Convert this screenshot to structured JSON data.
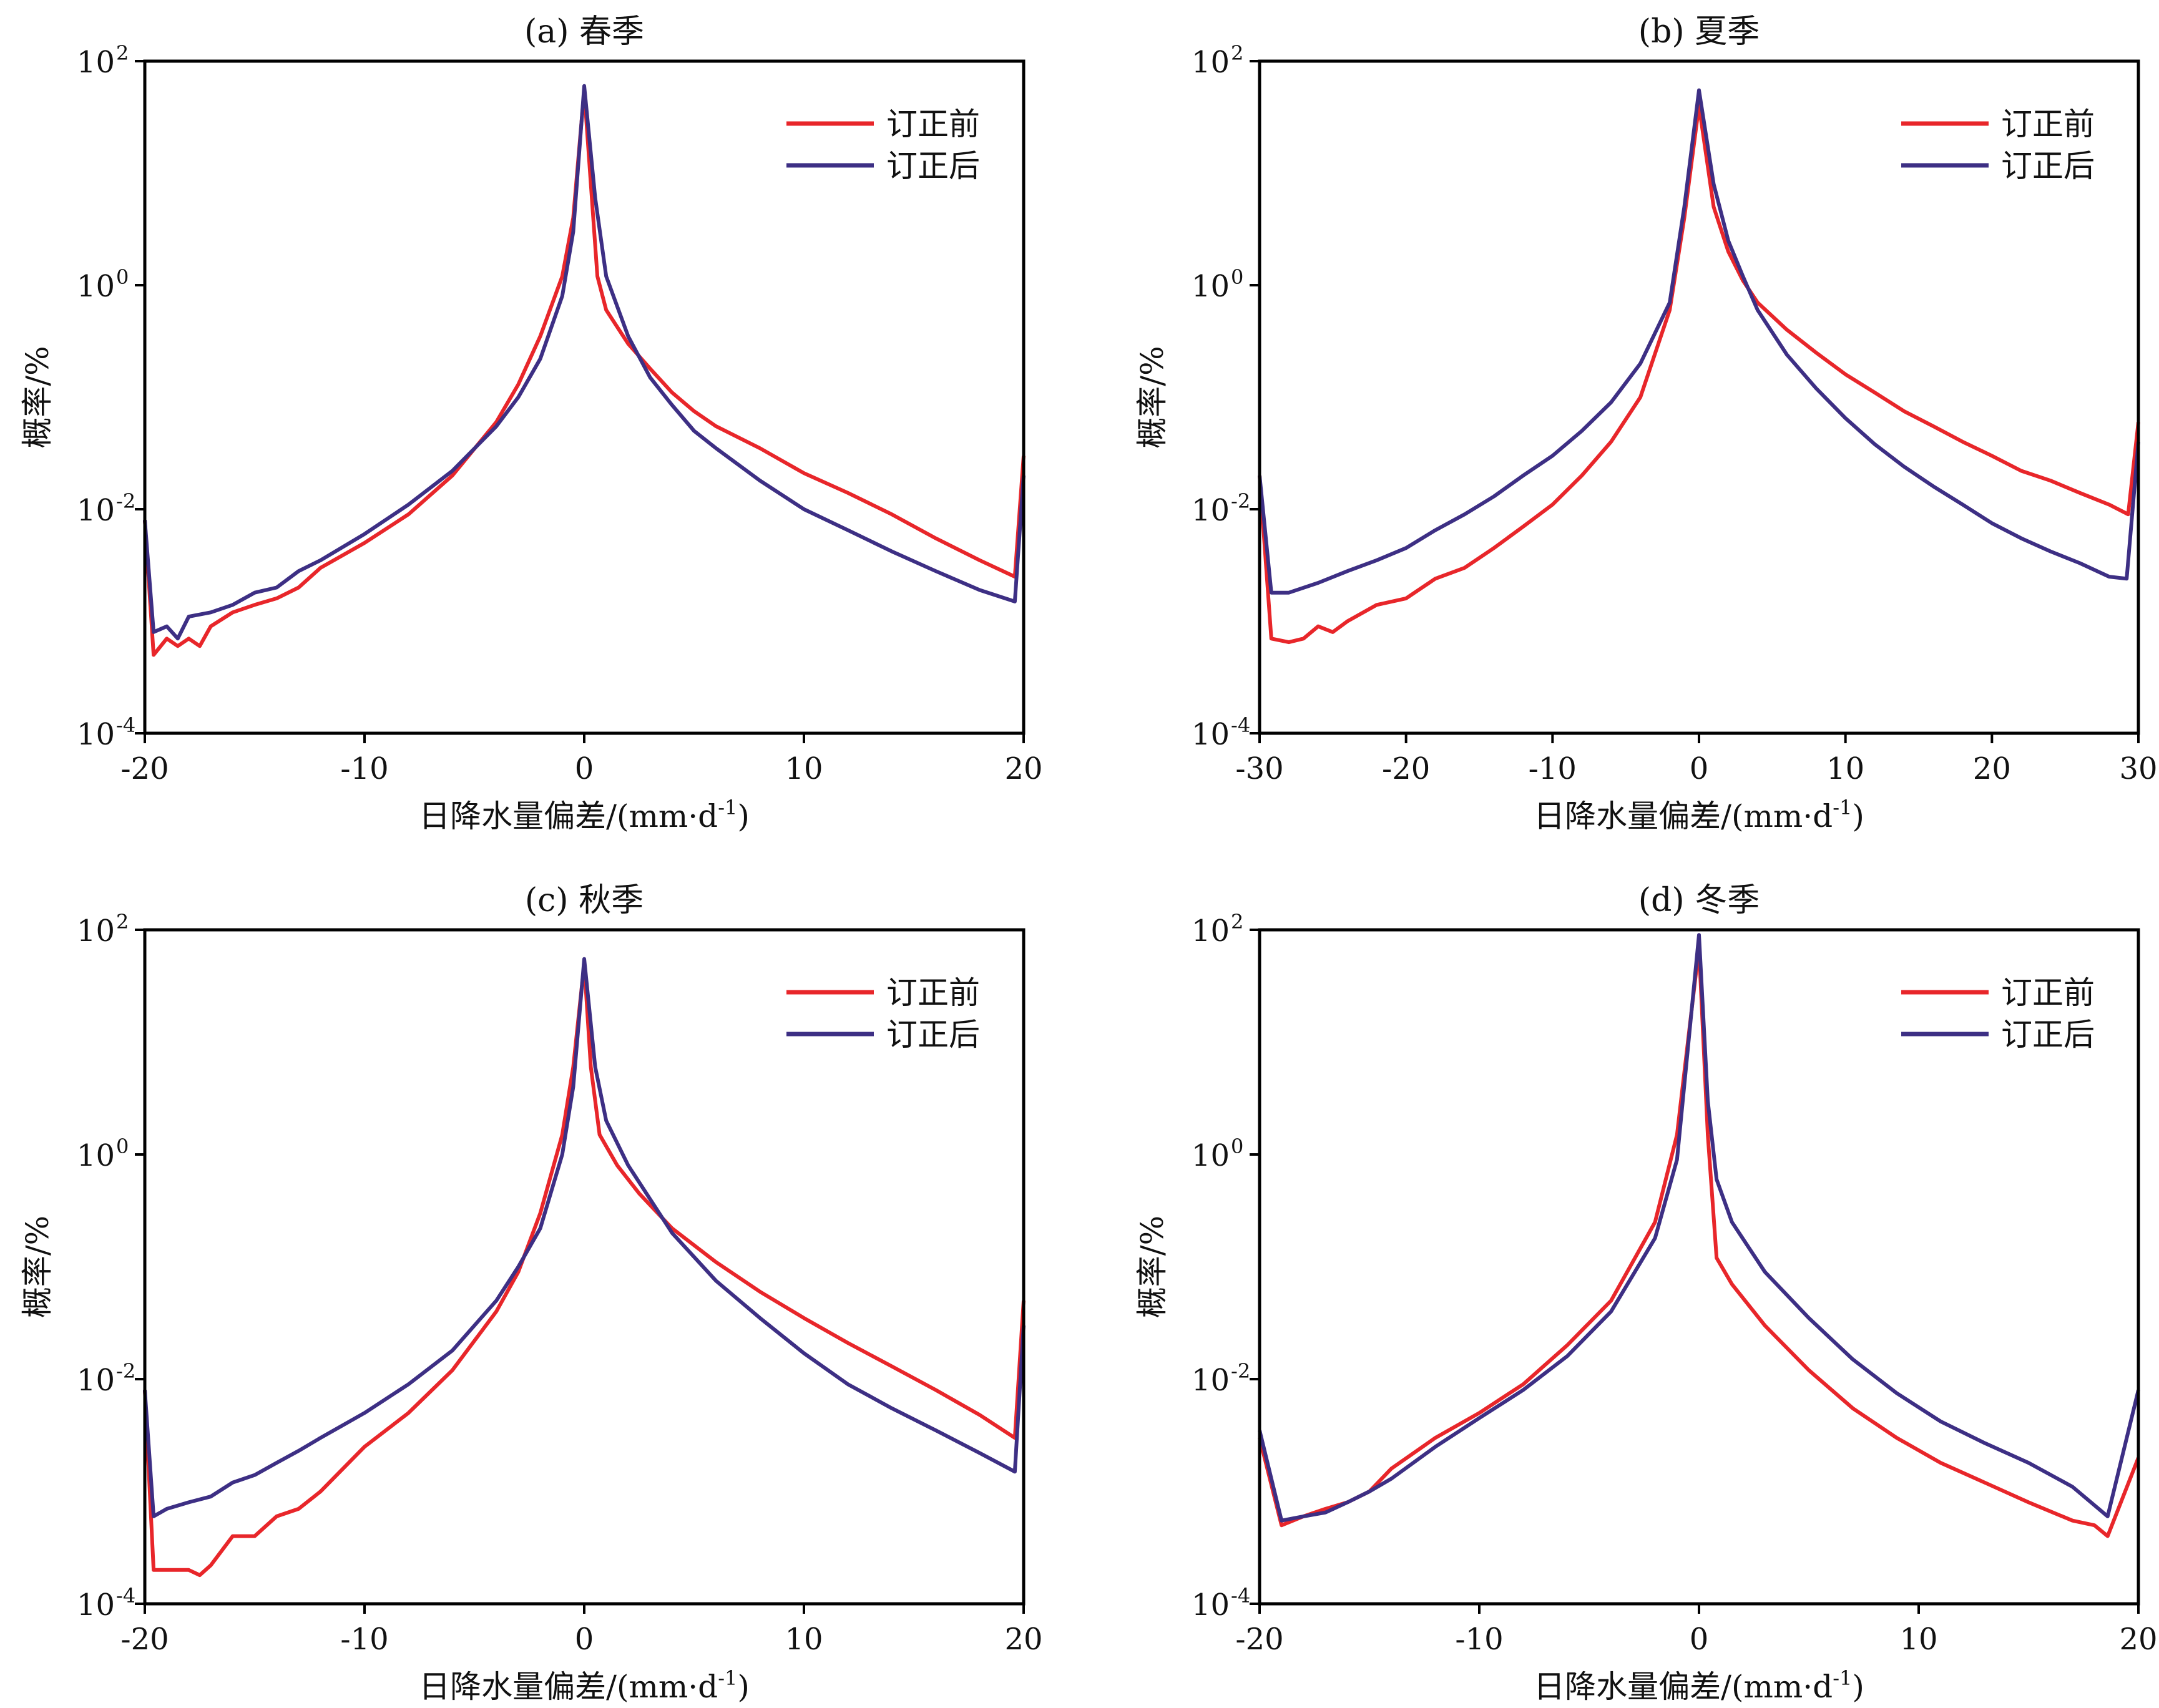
{
  "figure": {
    "chart_data": [
      {
        "type": "line",
        "title": "(a) 春季",
        "xlabel": "日降水量偏差/(mm·d",
        "xlabel_sup": "-1",
        "xlabel_end": ")",
        "ylabel": "概率/%",
        "yscale": "log",
        "xlim": [
          -20,
          20
        ],
        "ylim": [
          0.0001,
          100
        ],
        "xticks": [
          -20,
          -10,
          0,
          10,
          20
        ],
        "yticks": [
          {
            "base": "10",
            "exp": "2",
            "value": 100
          },
          {
            "base": "10",
            "exp": "0",
            "value": 1
          },
          {
            "base": "10",
            "exp": "-2",
            "value": 0.01
          },
          {
            "base": "10",
            "exp": "-4",
            "value": 0.0001
          }
        ],
        "grid": false,
        "legend": "top-right",
        "series": [
          {
            "name": "订正前",
            "color": "#e8262a",
            "x": [
              -20,
              -19.6,
              -19,
              -18.5,
              -18,
              -17.5,
              -17,
              -16,
              -15,
              -14,
              -13,
              -12,
              -10,
              -8,
              -6,
              -4,
              -3,
              -2,
              -1,
              -0.5,
              0,
              0.3,
              0.6,
              1,
              2,
              3,
              4,
              5,
              6,
              8,
              10,
              12,
              14,
              16,
              18,
              19.6,
              20
            ],
            "y": [
              0.008,
              0.0005,
              0.0007,
              0.0006,
              0.0007,
              0.0006,
              0.0009,
              0.0012,
              0.0014,
              0.0016,
              0.002,
              0.003,
              0.005,
              0.009,
              0.02,
              0.06,
              0.13,
              0.35,
              1.2,
              4,
              55,
              8,
              1.2,
              0.6,
              0.3,
              0.18,
              0.11,
              0.075,
              0.055,
              0.035,
              0.021,
              0.014,
              0.009,
              0.0055,
              0.0035,
              0.0025,
              0.03
            ]
          },
          {
            "name": "订正后",
            "color": "#3d2f84",
            "x": [
              -20,
              -19.6,
              -19,
              -18.5,
              -18,
              -17,
              -16,
              -15,
              -14,
              -13,
              -12,
              -10,
              -8,
              -6,
              -4,
              -3,
              -2,
              -1,
              -0.5,
              0,
              0.5,
              1,
              2,
              3,
              4,
              5,
              6,
              8,
              10,
              12,
              14,
              16,
              18,
              19.6,
              20
            ],
            "y": [
              0.008,
              0.0008,
              0.0009,
              0.0007,
              0.0011,
              0.0012,
              0.0014,
              0.0018,
              0.002,
              0.0028,
              0.0035,
              0.006,
              0.011,
              0.022,
              0.055,
              0.1,
              0.22,
              0.8,
              3,
              60,
              6,
              1.2,
              0.35,
              0.15,
              0.085,
              0.05,
              0.035,
              0.018,
              0.01,
              0.0065,
              0.0042,
              0.0028,
              0.0019,
              0.0015,
              0.02
            ]
          }
        ]
      },
      {
        "type": "line",
        "title": "(b) 夏季",
        "xlabel": "日降水量偏差/(mm·d",
        "xlabel_sup": "-1",
        "xlabel_end": ")",
        "ylabel": "概率/%",
        "yscale": "log",
        "xlim": [
          -30,
          30
        ],
        "ylim": [
          0.0001,
          100
        ],
        "xticks": [
          -30,
          -20,
          -10,
          0,
          10,
          20,
          30
        ],
        "yticks": [
          {
            "base": "10",
            "exp": "2",
            "value": 100
          },
          {
            "base": "10",
            "exp": "0",
            "value": 1
          },
          {
            "base": "10",
            "exp": "-2",
            "value": 0.01
          },
          {
            "base": "10",
            "exp": "-4",
            "value": 0.0001
          }
        ],
        "grid": false,
        "legend": "top-right",
        "series": [
          {
            "name": "订正前",
            "color": "#e8262a",
            "x": [
              -30,
              -29.2,
              -28,
              -27,
              -26,
              -25,
              -24,
              -22,
              -20,
              -18,
              -16,
              -14,
              -12,
              -10,
              -8,
              -6,
              -4,
              -2,
              -1,
              0,
              1,
              2,
              3,
              4,
              6,
              8,
              10,
              12,
              14,
              16,
              18,
              20,
              22,
              24,
              26,
              28,
              29.3,
              30
            ],
            "y": [
              0.02,
              0.0007,
              0.00065,
              0.0007,
              0.0009,
              0.0008,
              0.001,
              0.0014,
              0.0016,
              0.0024,
              0.003,
              0.0045,
              0.007,
              0.011,
              0.02,
              0.04,
              0.1,
              0.6,
              4,
              40,
              5,
              2,
              1.1,
              0.7,
              0.4,
              0.25,
              0.16,
              0.11,
              0.075,
              0.055,
              0.04,
              0.03,
              0.022,
              0.018,
              0.014,
              0.011,
              0.009,
              0.06
            ]
          },
          {
            "name": "订正后",
            "color": "#3d2f84",
            "x": [
              -30,
              -29.2,
              -28,
              -26,
              -24,
              -22,
              -20,
              -18,
              -16,
              -14,
              -12,
              -10,
              -8,
              -6,
              -4,
              -2,
              -1,
              0,
              1,
              2,
              3,
              4,
              6,
              8,
              10,
              12,
              14,
              16,
              18,
              20,
              22,
              24,
              26,
              28,
              29.2,
              30
            ],
            "y": [
              0.02,
              0.0018,
              0.0018,
              0.0022,
              0.0028,
              0.0035,
              0.0045,
              0.0065,
              0.009,
              0.013,
              0.02,
              0.03,
              0.05,
              0.09,
              0.2,
              0.7,
              5,
              55,
              8,
              2.5,
              1.2,
              0.6,
              0.24,
              0.12,
              0.065,
              0.038,
              0.024,
              0.016,
              0.011,
              0.0075,
              0.0055,
              0.0042,
              0.0033,
              0.0025,
              0.0024,
              0.04
            ]
          }
        ]
      },
      {
        "type": "line",
        "title": "(c) 秋季",
        "xlabel": "日降水量偏差/(mm·d",
        "xlabel_sup": "-1",
        "xlabel_end": ")",
        "ylabel": "概率/%",
        "yscale": "log",
        "xlim": [
          -20,
          20
        ],
        "ylim": [
          0.0001,
          100
        ],
        "xticks": [
          -20,
          -10,
          0,
          10,
          20
        ],
        "yticks": [
          {
            "base": "10",
            "exp": "2",
            "value": 100
          },
          {
            "base": "10",
            "exp": "0",
            "value": 1
          },
          {
            "base": "10",
            "exp": "-2",
            "value": 0.01
          },
          {
            "base": "10",
            "exp": "-4",
            "value": 0.0001
          }
        ],
        "grid": false,
        "legend": "top-right",
        "series": [
          {
            "name": "订正前",
            "color": "#e8262a",
            "x": [
              -20,
              -19.6,
              -19,
              -18,
              -17.5,
              -17,
              -16,
              -15,
              -14,
              -13,
              -12,
              -10,
              -8,
              -6,
              -4,
              -3,
              -2,
              -1,
              -0.5,
              0,
              0.3,
              0.7,
              1.5,
              2.5,
              4,
              6,
              8,
              10,
              12,
              14,
              16,
              18,
              19.6,
              20
            ],
            "y": [
              0.008,
              0.0002,
              0.0002,
              0.0002,
              0.00018,
              0.00022,
              0.0004,
              0.0004,
              0.0006,
              0.0007,
              0.001,
              0.0025,
              0.005,
              0.012,
              0.04,
              0.09,
              0.3,
              1.5,
              6,
              50,
              6,
              1.5,
              0.8,
              0.45,
              0.22,
              0.11,
              0.06,
              0.035,
              0.021,
              0.013,
              0.008,
              0.0048,
              0.003,
              0.05
            ]
          },
          {
            "name": "订正后",
            "color": "#3d2f84",
            "x": [
              -20,
              -19.6,
              -19,
              -18,
              -17,
              -16,
              -15,
              -14,
              -13,
              -12,
              -10,
              -8,
              -6,
              -4,
              -3,
              -2,
              -1,
              -0.5,
              0,
              0.5,
              1,
              2,
              3,
              4,
              6,
              8,
              10,
              12,
              14,
              16,
              18,
              19.6,
              20
            ],
            "y": [
              0.008,
              0.0006,
              0.0007,
              0.0008,
              0.0009,
              0.0012,
              0.0014,
              0.0018,
              0.0023,
              0.003,
              0.005,
              0.009,
              0.018,
              0.05,
              0.1,
              0.22,
              1,
              4,
              55,
              6,
              2,
              0.8,
              0.4,
              0.2,
              0.075,
              0.035,
              0.017,
              0.009,
              0.0055,
              0.0035,
              0.0022,
              0.0015,
              0.03
            ]
          }
        ]
      },
      {
        "type": "line",
        "title": "(d) 冬季",
        "xlabel": "日降水量偏差/(mm·d",
        "xlabel_sup": "-1",
        "xlabel_end": ")",
        "ylabel": "概率/%",
        "yscale": "log",
        "xlim": [
          -20,
          20
        ],
        "ylim": [
          0.0001,
          100
        ],
        "xticks": [
          -20,
          -10,
          0,
          10,
          20
        ],
        "yticks": [
          {
            "base": "10",
            "exp": "2",
            "value": 100
          },
          {
            "base": "10",
            "exp": "0",
            "value": 1
          },
          {
            "base": "10",
            "exp": "-2",
            "value": 0.01
          },
          {
            "base": "10",
            "exp": "-4",
            "value": 0.0001
          }
        ],
        "grid": false,
        "legend": "top-right",
        "series": [
          {
            "name": "订正前",
            "color": "#e8262a",
            "x": [
              -20,
              -19,
              -18,
              -17,
              -16,
              -15,
              -14,
              -12,
              -10,
              -8,
              -6,
              -4,
              -2,
              -1,
              0,
              0.4,
              0.8,
              1.5,
              3,
              5,
              7,
              9,
              11,
              13,
              15,
              17,
              18,
              18.6,
              20
            ],
            "y": [
              0.003,
              0.0005,
              0.0006,
              0.0007,
              0.0008,
              0.001,
              0.0016,
              0.003,
              0.005,
              0.009,
              0.02,
              0.05,
              0.25,
              1.5,
              70,
              1.5,
              0.12,
              0.07,
              0.03,
              0.012,
              0.0055,
              0.003,
              0.0018,
              0.0012,
              0.0008,
              0.00055,
              0.0005,
              0.0004,
              0.002
            ]
          },
          {
            "name": "订正后",
            "color": "#3d2f84",
            "x": [
              -20,
              -19,
              -18,
              -17,
              -16,
              -15,
              -14,
              -12,
              -10,
              -8,
              -6,
              -4,
              -2,
              -1,
              0,
              0.4,
              0.8,
              1.5,
              3,
              5,
              7,
              9,
              11,
              13,
              15,
              17,
              18.6,
              20
            ],
            "y": [
              0.0035,
              0.00055,
              0.0006,
              0.00065,
              0.0008,
              0.001,
              0.0013,
              0.0025,
              0.0045,
              0.008,
              0.016,
              0.04,
              0.18,
              0.9,
              90,
              3,
              0.6,
              0.25,
              0.09,
              0.035,
              0.015,
              0.0075,
              0.0042,
              0.0027,
              0.0018,
              0.0011,
              0.0006,
              0.008
            ]
          }
        ]
      }
    ]
  }
}
